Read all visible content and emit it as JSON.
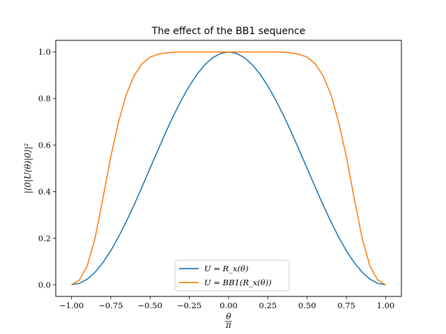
{
  "chart_data": {
    "type": "line",
    "title": "The effect of the BB1 sequence",
    "xlabel": "θ/π",
    "ylabel": "|⟨0|U(θ)|0⟩|²",
    "xlim": [
      -1.1,
      1.1
    ],
    "ylim": [
      -0.05,
      1.05
    ],
    "xticks": [
      -1.0,
      -0.75,
      -0.5,
      -0.25,
      0.0,
      0.25,
      0.5,
      0.75,
      1.0
    ],
    "xtick_labels": [
      "−1.00",
      "−0.75",
      "−0.50",
      "−0.25",
      "0.00",
      "0.25",
      "0.50",
      "0.75",
      "1.00"
    ],
    "yticks": [
      0.0,
      0.2,
      0.4,
      0.6,
      0.8,
      1.0
    ],
    "ytick_labels": [
      "0.0",
      "0.2",
      "0.4",
      "0.6",
      "0.8",
      "1.0"
    ],
    "grid": false,
    "legend_placement": "lower center",
    "x": [
      -1.0,
      -0.95,
      -0.9,
      -0.85,
      -0.8,
      -0.75,
      -0.7,
      -0.65,
      -0.6,
      -0.55,
      -0.5,
      -0.45,
      -0.4,
      -0.35,
      -0.3,
      -0.25,
      -0.2,
      -0.15,
      -0.1,
      -0.05,
      0.0,
      0.05,
      0.1,
      0.15,
      0.2,
      0.25,
      0.3,
      0.35,
      0.4,
      0.45,
      0.5,
      0.55,
      0.6,
      0.65,
      0.7,
      0.75,
      0.8,
      0.85,
      0.9,
      0.95,
      1.0
    ],
    "series": [
      {
        "name": "U = R_x(θ)",
        "color": "#1f77b4",
        "values": [
          0.0,
          0.006,
          0.024,
          0.054,
          0.095,
          0.146,
          0.206,
          0.273,
          0.345,
          0.422,
          0.5,
          0.578,
          0.655,
          0.727,
          0.794,
          0.854,
          0.905,
          0.946,
          0.976,
          0.994,
          1.0,
          0.994,
          0.976,
          0.946,
          0.905,
          0.854,
          0.794,
          0.727,
          0.655,
          0.578,
          0.5,
          0.422,
          0.345,
          0.273,
          0.206,
          0.146,
          0.095,
          0.054,
          0.024,
          0.006,
          0.0
        ]
      },
      {
        "name": "U = BB1(R_x(θ))",
        "color": "#ff7f0e",
        "values": [
          0.0,
          0.02,
          0.08,
          0.2,
          0.37,
          0.55,
          0.7,
          0.82,
          0.9,
          0.95,
          0.978,
          0.99,
          0.996,
          0.999,
          1.0,
          1.0,
          1.0,
          1.0,
          1.0,
          1.0,
          1.0,
          1.0,
          1.0,
          1.0,
          1.0,
          1.0,
          1.0,
          0.999,
          0.996,
          0.99,
          0.978,
          0.95,
          0.9,
          0.82,
          0.7,
          0.55,
          0.37,
          0.2,
          0.08,
          0.02,
          0.0
        ]
      }
    ]
  }
}
